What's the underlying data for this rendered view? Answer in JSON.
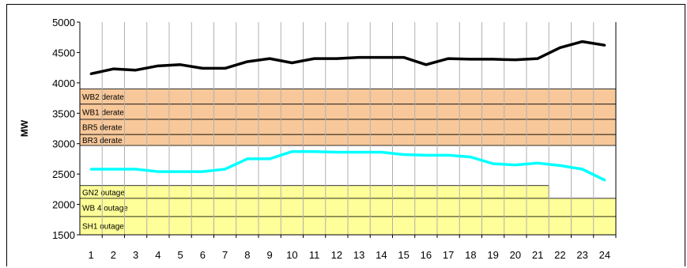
{
  "chart_data": {
    "type": "line",
    "title": "",
    "xlabel": "",
    "ylabel": "MW",
    "ylim": [
      1500,
      5000
    ],
    "yticks": [
      1500,
      2000,
      2500,
      3000,
      3500,
      4000,
      4500,
      5000
    ],
    "categories": [
      "1",
      "2",
      "3",
      "4",
      "5",
      "6",
      "7",
      "8",
      "9",
      "10",
      "11",
      "12",
      "13",
      "14",
      "15",
      "16",
      "17",
      "18",
      "19",
      "20",
      "21",
      "22",
      "23",
      "24"
    ],
    "grid": "vertical",
    "series": [
      {
        "color": "#000000",
        "values": [
          4150,
          4230,
          4210,
          4280,
          4300,
          4240,
          4240,
          4350,
          4400,
          4330,
          4400,
          4400,
          4420,
          4420,
          4420,
          4300,
          4400,
          4390,
          4390,
          4380,
          4400,
          4580,
          4680,
          4620
        ]
      },
      {
        "color": "#00ffff",
        "values": [
          2580,
          2580,
          2580,
          2540,
          2540,
          2540,
          2580,
          2750,
          2750,
          2870,
          2870,
          2860,
          2860,
          2860,
          2820,
          2810,
          2810,
          2780,
          2670,
          2650,
          2680,
          2640,
          2580,
          2400
        ]
      }
    ],
    "bands": [
      {
        "label": "WB2 derate",
        "y_from": 3650,
        "y_to": 3900,
        "x_end": 24.5,
        "color": "#f8c89a"
      },
      {
        "label": "WB1 derate",
        "y_from": 3400,
        "y_to": 3650,
        "x_end": 24.5,
        "color": "#f8c89a"
      },
      {
        "label": "BR5 derate",
        "y_from": 3150,
        "y_to": 3400,
        "x_end": 24.5,
        "color": "#f8c89a"
      },
      {
        "label": "BR3 derate",
        "y_from": 2970,
        "y_to": 3150,
        "x_end": 24.5,
        "color": "#f8c89a"
      },
      {
        "label": "GN2 outage",
        "y_from": 2100,
        "y_to": 2310,
        "x_end": 21.5,
        "color": "#ffff99"
      },
      {
        "label": "WB 4 outage",
        "y_from": 1800,
        "y_to": 2100,
        "x_end": 24.5,
        "color": "#ffff99"
      },
      {
        "label": "SH1 outage",
        "y_from": 1500,
        "y_to": 1800,
        "x_end": 24.5,
        "color": "#ffff99"
      }
    ]
  }
}
